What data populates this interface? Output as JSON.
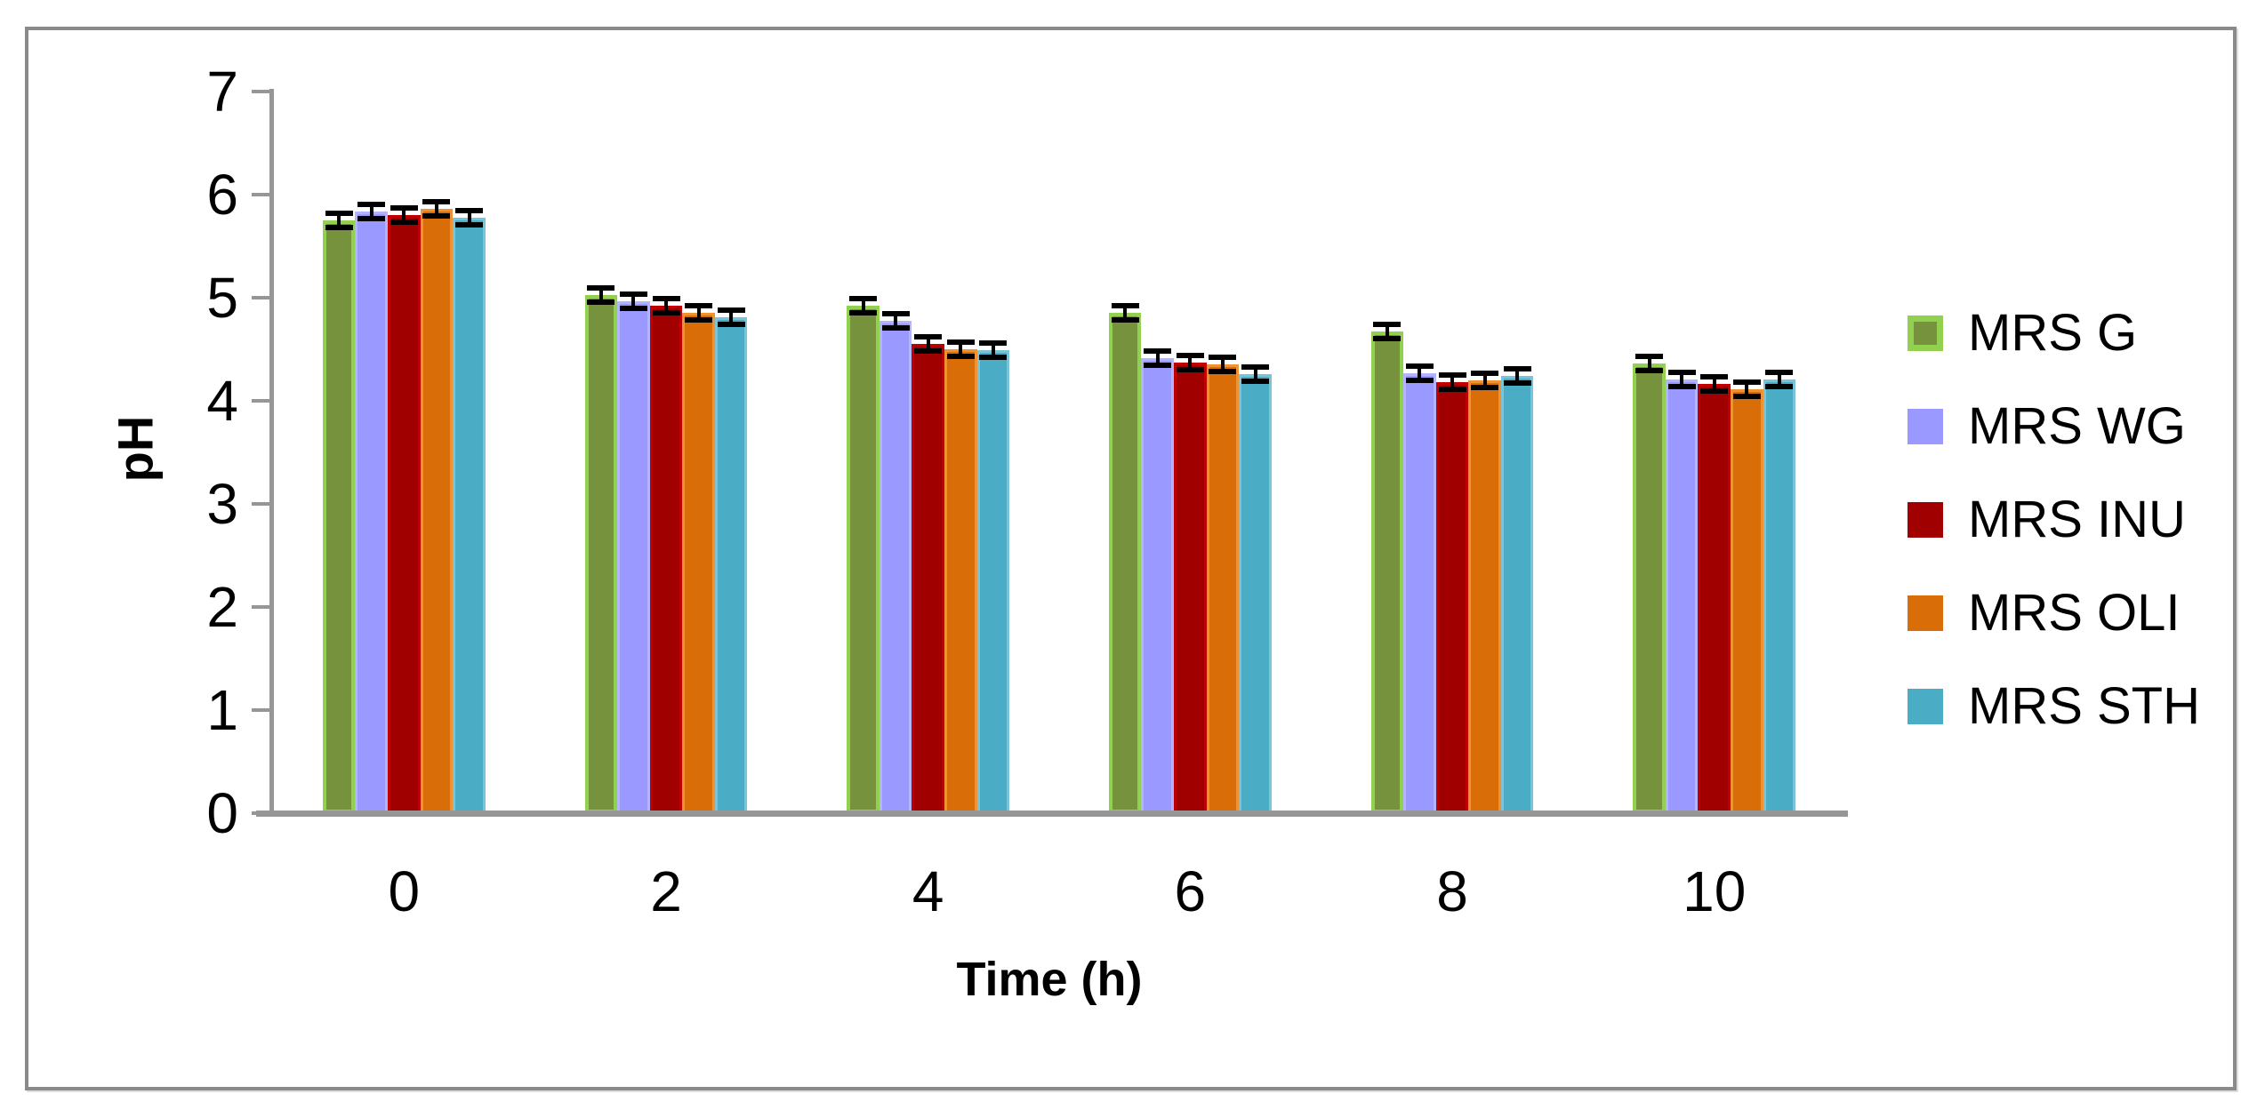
{
  "figure": {
    "background": "#ffffff",
    "border_color": "#8a8a8a"
  },
  "chart_data": {
    "type": "bar",
    "title": "",
    "xlabel": "Time (h)",
    "ylabel": "pH",
    "categories": [
      "0",
      "2",
      "4",
      "6",
      "8",
      "10"
    ],
    "yticks": [
      0,
      1,
      2,
      3,
      4,
      5,
      6,
      7
    ],
    "ylim": [
      0,
      7
    ],
    "grid": false,
    "legend_position": "right-middle",
    "axis_color": "#969696",
    "error_bars": true,
    "error_bar_color": "#000000",
    "error_value_approx": 0.04,
    "series": [
      {
        "name": "MRS G",
        "fill": "#76923C",
        "border": "#92D050",
        "values": [
          5.75,
          5.03,
          4.92,
          4.85,
          4.67,
          4.36
        ]
      },
      {
        "name": "MRS WG",
        "fill": "#9999FF",
        "border": "#B4B4FD",
        "values": [
          5.84,
          4.97,
          4.78,
          4.41,
          4.27,
          4.21
        ]
      },
      {
        "name": "MRS INU",
        "fill": "#A00000",
        "border": "#C00000",
        "values": [
          5.8,
          4.92,
          4.55,
          4.37,
          4.18,
          4.16
        ]
      },
      {
        "name": "MRS OLI",
        "fill": "#D96D08",
        "border": "#EF9231",
        "values": [
          5.86,
          4.85,
          4.5,
          4.35,
          4.2,
          4.11
        ]
      },
      {
        "name": "MRS STH",
        "fill": "#4BACC6",
        "border": "#7AC4D9",
        "values": [
          5.78,
          4.81,
          4.49,
          4.26,
          4.24,
          4.21
        ]
      }
    ]
  }
}
